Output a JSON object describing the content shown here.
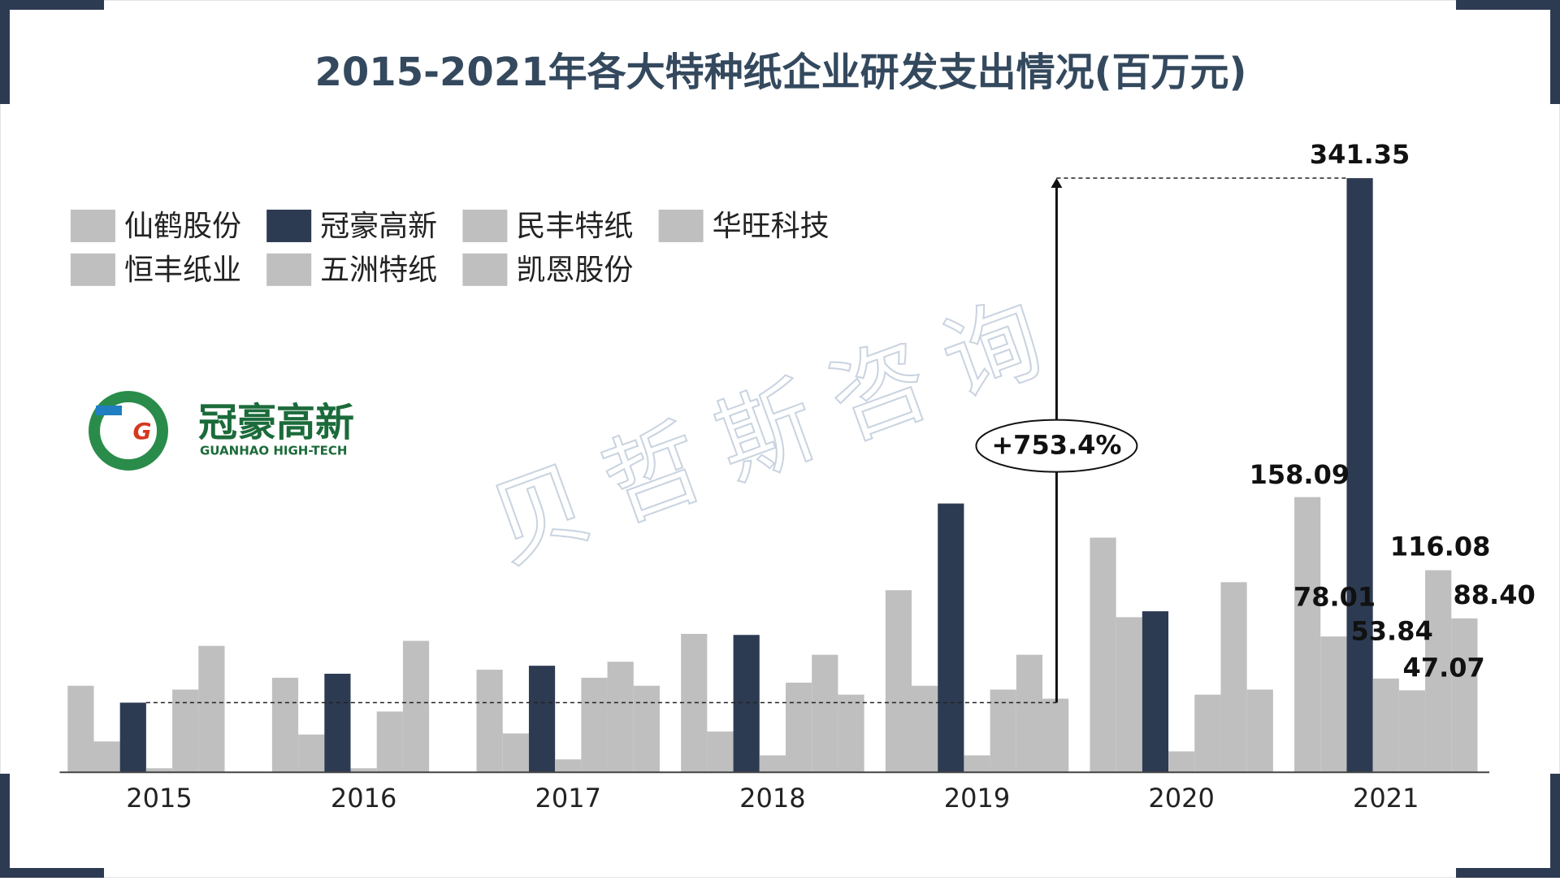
{
  "chart_data": {
    "type": "bar",
    "title": "2015-2021年各大特种纸企业研发支出情况(百万元)",
    "categories": [
      "2015",
      "2016",
      "2017",
      "2018",
      "2019",
      "2020",
      "2021"
    ],
    "series": [
      {
        "name": "仙鹤股份",
        "color": "#bfbfbf",
        "values": [
          49.7,
          54.3,
          58.9,
          79.5,
          104.6,
          134.8,
          158.09
        ],
        "value_labels": [
          null,
          null,
          null,
          null,
          null,
          null,
          "158.09"
        ]
      },
      {
        "name": "恒丰纸业",
        "color": "#bfbfbf",
        "values": [
          17.7,
          21.7,
          22.3,
          23.4,
          49.7,
          89.1,
          78.01
        ],
        "value_labels": [
          null,
          null,
          null,
          null,
          null,
          null,
          "78.01"
        ]
      },
      {
        "name": "冠豪高新",
        "color": "#2d3b52",
        "values": [
          40.0,
          56.6,
          61.2,
          78.9,
          154.4,
          92.5,
          341.35
        ],
        "value_labels": [
          null,
          null,
          null,
          null,
          null,
          null,
          "341.35"
        ]
      },
      {
        "name": "五洲特纸",
        "color": "#bfbfbf",
        "values": [
          2.3,
          2.3,
          7.4,
          9.7,
          9.7,
          12.0,
          53.84
        ],
        "value_labels": [
          null,
          null,
          null,
          null,
          null,
          null,
          "53.84"
        ]
      },
      {
        "name": "民丰特纸",
        "color": "#bfbfbf",
        "values": [
          47.5,
          34.9,
          54.3,
          51.5,
          47.5,
          44.6,
          47.07
        ],
        "value_labels": [
          null,
          null,
          null,
          null,
          null,
          null,
          "47.07"
        ]
      },
      {
        "name": "凯恩股份",
        "color": "#bfbfbf",
        "values": [
          72.6,
          75.5,
          63.5,
          67.5,
          67.5,
          109.2,
          116.08
        ],
        "value_labels": [
          null,
          null,
          null,
          null,
          null,
          null,
          "116.08"
        ]
      },
      {
        "name": "华旺科技",
        "color": "#bfbfbf",
        "values": [
          null,
          null,
          49.7,
          44.6,
          42.3,
          47.5,
          88.4
        ],
        "value_labels": [
          null,
          null,
          null,
          null,
          null,
          null,
          "88.40"
        ]
      }
    ],
    "ylim": [
      0,
      400
    ],
    "annotation": "+753.4%",
    "watermark": "贝哲斯咨询"
  },
  "logo": {
    "name": "冠豪高新",
    "subtitle": "GUANHAO HIGH-TECH"
  }
}
